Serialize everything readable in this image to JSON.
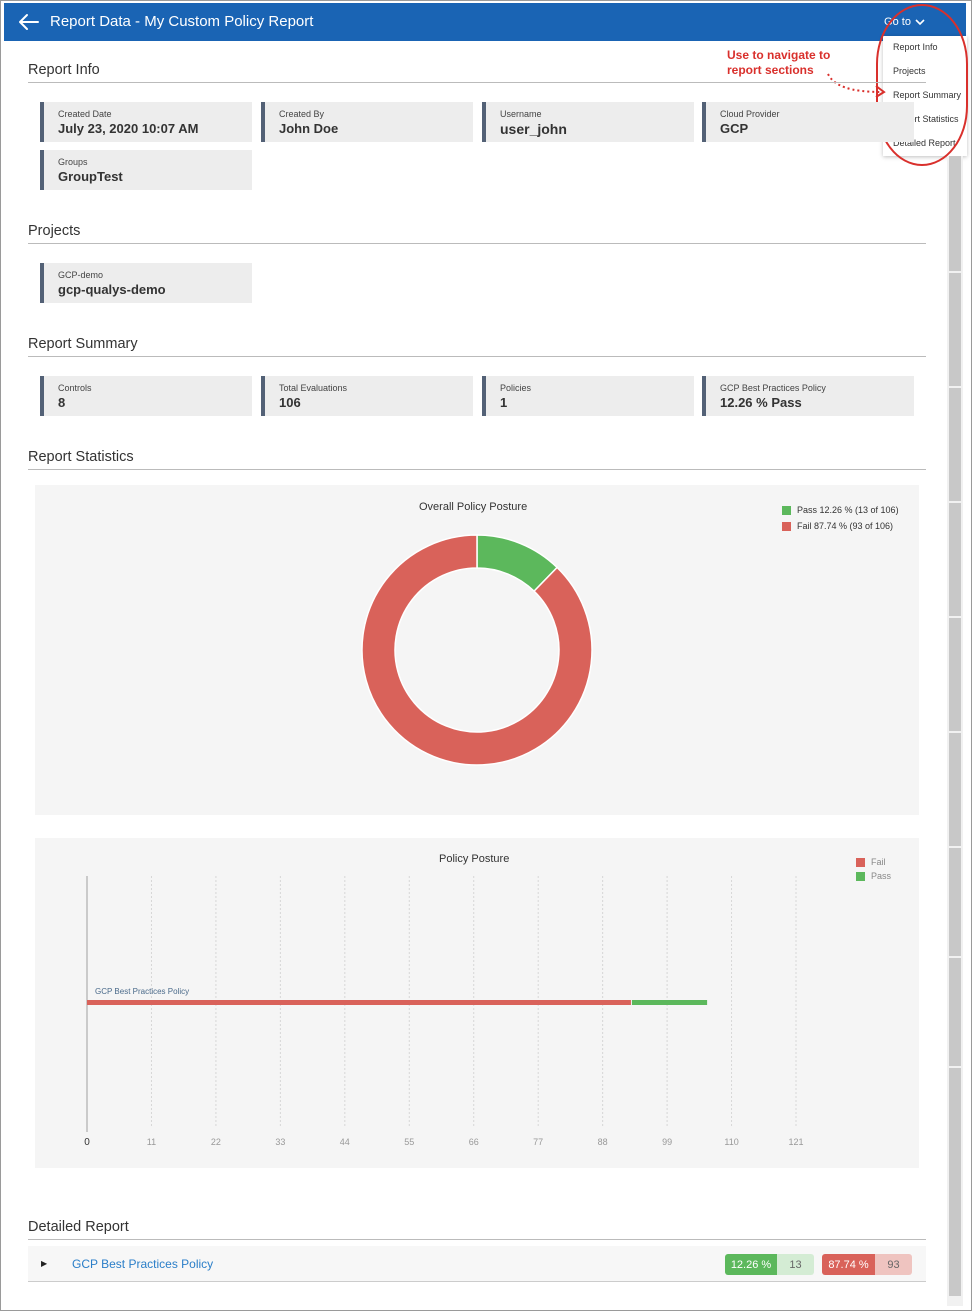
{
  "header": {
    "title": "Report Data - My Custom Policy Report"
  },
  "goto": {
    "label": "Go to",
    "items": [
      "Report Info",
      "Projects",
      "Report Summary",
      "Report Statistics",
      "Detailed Report"
    ]
  },
  "annotation": {
    "line1": "Use to navigate to",
    "line2": "report sections"
  },
  "report_info": {
    "title": "Report Info",
    "cards": [
      {
        "label": "Created Date",
        "value": "July 23, 2020 10:07 AM"
      },
      {
        "label": "Created By",
        "value": "John Doe"
      },
      {
        "label": "Username",
        "value": "user_john"
      },
      {
        "label": "Cloud Provider",
        "value": "GCP"
      },
      {
        "label": "Groups",
        "value": "GroupTest"
      }
    ]
  },
  "projects": {
    "title": "Projects",
    "cards": [
      {
        "label": "GCP-demo",
        "value": "gcp-qualys-demo"
      }
    ]
  },
  "report_summary": {
    "title": "Report Summary",
    "cards": [
      {
        "label": "Controls",
        "value": "8"
      },
      {
        "label": "Total Evaluations",
        "value": "106"
      },
      {
        "label": "Policies",
        "value": "1"
      },
      {
        "label": "GCP Best Practices Policy",
        "value": "12.26 % Pass"
      }
    ]
  },
  "report_statistics": {
    "title": "Report Statistics"
  },
  "colors": {
    "pass": "#5cb85c",
    "fail": "#d9625a",
    "header": "#1a64b4",
    "link": "#2a7ec8",
    "annotation": "#d9302c"
  },
  "chart_data": [
    {
      "type": "pie",
      "title": "Overall Policy Posture",
      "donut": true,
      "legend_position": "top-right",
      "slices": [
        {
          "name": "Pass",
          "value": 13,
          "legend": "Pass 12.26 % (13 of 106)",
          "color": "#5cb85c"
        },
        {
          "name": "Fail",
          "value": 93,
          "legend": "Fail 87.74 % (93 of 106)",
          "color": "#d9625a"
        }
      ]
    },
    {
      "type": "bar",
      "orientation": "horizontal",
      "stacked": true,
      "title": "Policy Posture",
      "legend_position": "top-right",
      "categories": [
        "GCP Best Practices Policy"
      ],
      "series": [
        {
          "name": "Fail",
          "values": [
            93
          ],
          "color": "#d9625a"
        },
        {
          "name": "Pass",
          "values": [
            13
          ],
          "color": "#5cb85c"
        }
      ],
      "xlim": [
        0,
        121
      ],
      "xticks": [
        "0",
        "11",
        "22",
        "33",
        "44",
        "55",
        "66",
        "77",
        "88",
        "99",
        "110",
        "121"
      ],
      "grid": true
    }
  ],
  "detailed_report": {
    "title": "Detailed Report",
    "rows": [
      {
        "name": "GCP Best Practices Policy",
        "pass_pct": "12.26 %",
        "pass_count": "13",
        "fail_pct": "87.74 %",
        "fail_count": "93"
      }
    ]
  }
}
